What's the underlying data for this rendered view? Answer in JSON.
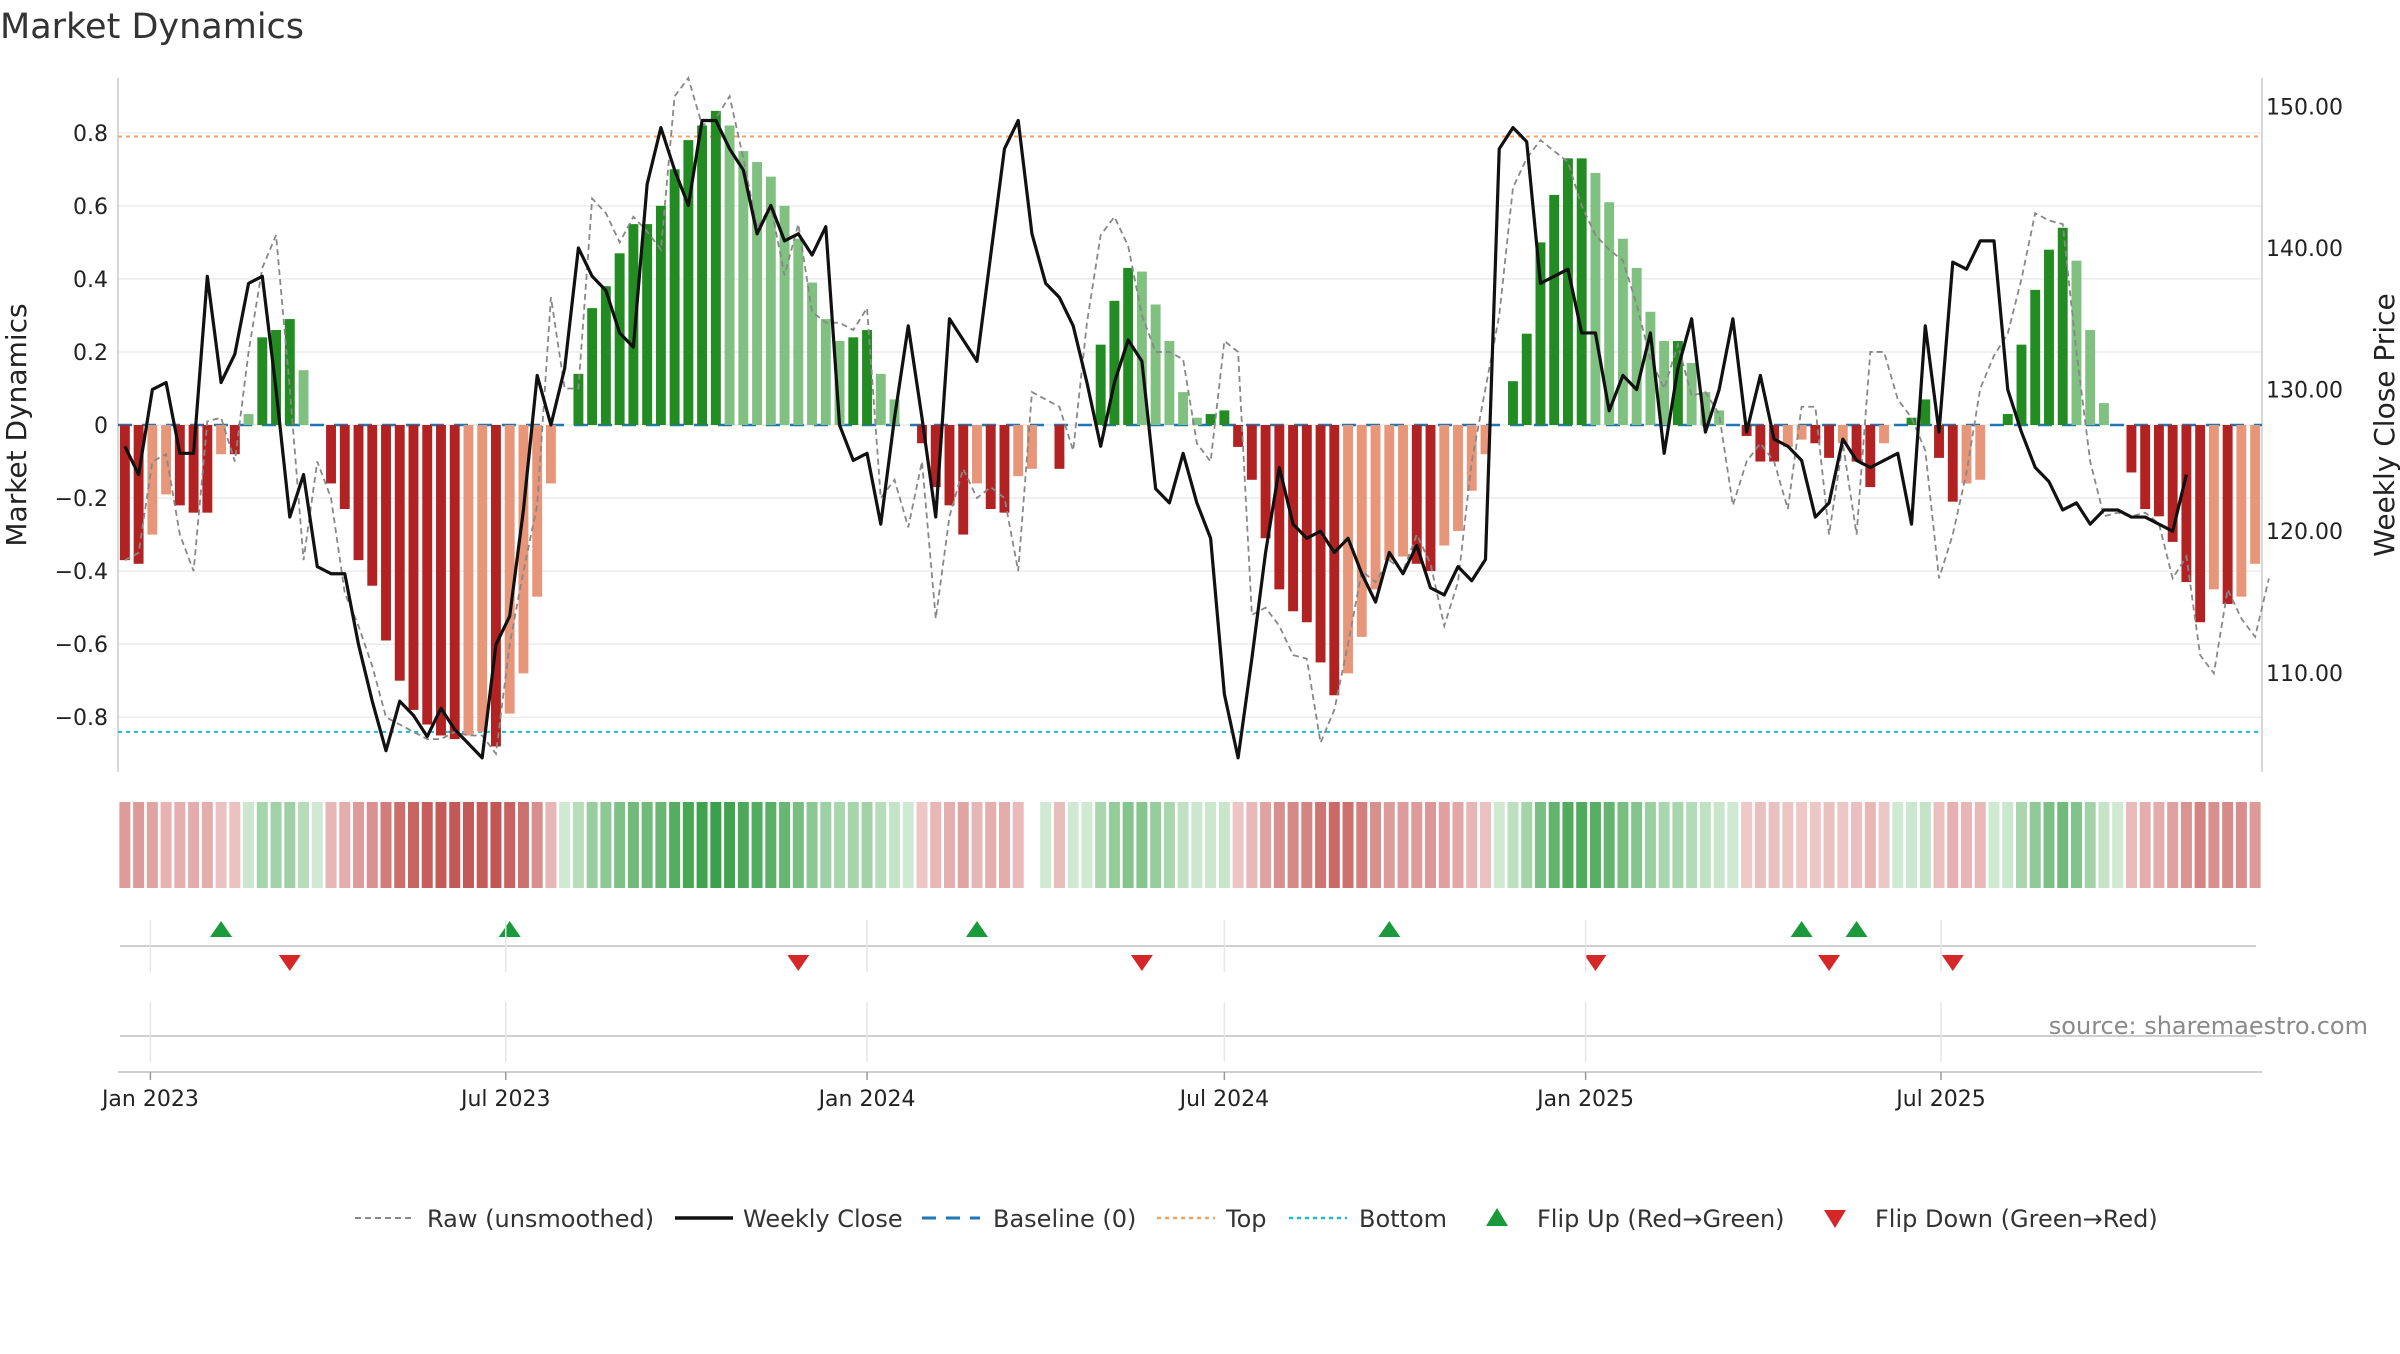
{
  "chart_data": {
    "type": "bar",
    "title": "Market Dynamics",
    "ylabel_left": "Market Dynamics",
    "ylabel_right": "Weekly Close Price",
    "ylim_left": [
      -0.95,
      0.95
    ],
    "ylim_right": [
      103,
      152
    ],
    "yticks_left": [
      "0.8",
      "0.6",
      "0.4",
      "0.2",
      "0",
      "−0.2",
      "−0.4",
      "−0.6",
      "−0.8"
    ],
    "yticks_right": [
      "150.00",
      "140.00",
      "130.00",
      "120.00",
      "110.00"
    ],
    "x_ticks": [
      "Jan 2023",
      "Jul 2023",
      "Jan 2024",
      "Jul 2024",
      "Jan 2025",
      "Jul 2025"
    ],
    "x_start_date": "2022-12-19",
    "grid": true,
    "legend_position": "bottom",
    "source": "source: sharemaestro.com",
    "levels": {
      "top": 0.79,
      "bottom": -0.84,
      "baseline": 0
    },
    "colors": {
      "strong_green": "#228b22",
      "light_green": "#80c080",
      "strong_red": "#b22222",
      "light_red": "#e8967a",
      "raw_line": "#888888",
      "close_line": "#111111",
      "baseline": "#1f77b4",
      "top": "#f4a261",
      "bottom": "#17becf",
      "flip_up": "#1a9a3a",
      "flip_down": "#d62728"
    },
    "series": [
      {
        "name": "Market Dynamics",
        "values": [
          -0.37,
          -0.38,
          -0.3,
          -0.19,
          -0.22,
          -0.24,
          -0.24,
          -0.08,
          -0.08,
          0.03,
          0.24,
          0.26,
          0.29,
          0.15,
          0,
          -0.16,
          -0.23,
          -0.37,
          -0.44,
          -0.59,
          -0.7,
          -0.78,
          -0.82,
          -0.85,
          -0.86,
          -0.85,
          -0.84,
          -0.88,
          -0.79,
          -0.68,
          -0.47,
          -0.16,
          0,
          0.14,
          0.32,
          0.38,
          0.47,
          0.55,
          0.55,
          0.6,
          0.7,
          0.78,
          0.82,
          0.86,
          0.82,
          0.75,
          0.72,
          0.68,
          0.6,
          0.51,
          0.39,
          0.29,
          0.23,
          0.24,
          0.26,
          0.14,
          0.07,
          0,
          -0.05,
          -0.17,
          -0.22,
          -0.3,
          -0.16,
          -0.23,
          -0.24,
          -0.14,
          -0.12,
          0,
          -0.12,
          0,
          0,
          0.22,
          0.34,
          0.43,
          0.42,
          0.33,
          0.23,
          0.09,
          0.02,
          0.03,
          0.04,
          -0.06,
          -0.15,
          -0.31,
          -0.45,
          -0.51,
          -0.54,
          -0.65,
          -0.74,
          -0.68,
          -0.58,
          -0.45,
          -0.37,
          -0.36,
          -0.38,
          -0.4,
          -0.33,
          -0.29,
          -0.18,
          -0.08,
          0,
          0.12,
          0.25,
          0.5,
          0.63,
          0.73,
          0.73,
          0.69,
          0.61,
          0.51,
          0.43,
          0.31,
          0.23,
          0.23,
          0.17,
          0.09,
          0.04,
          0,
          -0.03,
          -0.1,
          -0.1,
          -0.06,
          -0.04,
          -0.05,
          -0.09,
          -0.05,
          -0.1,
          -0.17,
          -0.05,
          0,
          0.02,
          0.07,
          -0.09,
          -0.21,
          -0.16,
          -0.15,
          0,
          0.03,
          0.22,
          0.37,
          0.48,
          0.54,
          0.45,
          0.26,
          0.06,
          0,
          -0.13,
          -0.23,
          -0.25,
          -0.32,
          -0.43,
          -0.54,
          -0.45,
          -0.49,
          -0.47,
          -0.38
        ]
      },
      {
        "name": "Raw (unsmoothed)",
        "values": [
          -0.37,
          -0.35,
          -0.1,
          -0.08,
          -0.3,
          -0.4,
          0.01,
          0.02,
          -0.1,
          0.2,
          0.43,
          0.52,
          0.1,
          -0.37,
          -0.1,
          -0.2,
          -0.46,
          -0.55,
          -0.66,
          -0.8,
          -0.82,
          -0.84,
          -0.86,
          -0.86,
          -0.84,
          -0.85,
          -0.85,
          -0.9,
          -0.6,
          -0.4,
          -0.22,
          0.35,
          0.1,
          0.1,
          0.62,
          0.58,
          0.5,
          0.57,
          0.53,
          0.48,
          0.9,
          0.95,
          0.82,
          0.84,
          0.9,
          0.73,
          0.54,
          0.6,
          0.41,
          0.55,
          0.31,
          0.28,
          0.28,
          0.26,
          0.32,
          -0.2,
          -0.15,
          -0.28,
          -0.1,
          -0.53,
          -0.25,
          -0.12,
          -0.2,
          -0.17,
          -0.2,
          -0.4,
          0.09,
          0.07,
          0.05,
          -0.07,
          0.28,
          0.52,
          0.57,
          0.49,
          0.3,
          0.2,
          0.2,
          0.18,
          -0.05,
          -0.1,
          0.23,
          0.2,
          -0.52,
          -0.5,
          -0.55,
          -0.63,
          -0.64,
          -0.87,
          -0.78,
          -0.6,
          -0.4,
          -0.43,
          -0.37,
          -0.4,
          -0.3,
          -0.38,
          -0.55,
          -0.43,
          -0.1,
          0.1,
          0.3,
          0.65,
          0.73,
          0.78,
          0.75,
          0.72,
          0.6,
          0.52,
          0.48,
          0.45,
          0.33,
          0.18,
          0.1,
          0.22,
          0.08,
          0.09,
          0.03,
          -0.22,
          -0.1,
          -0.05,
          -0.1,
          -0.23,
          0.05,
          0.05,
          -0.3,
          -0.05,
          -0.3,
          0.2,
          0.2,
          0.07,
          0.02,
          -0.07,
          -0.42,
          -0.3,
          -0.13,
          0.1,
          0.19,
          0.25,
          0.4,
          0.58,
          0.56,
          0.55,
          0.2,
          -0.1,
          -0.25,
          -0.24,
          -0.25,
          -0.24,
          -0.27,
          -0.42,
          -0.36,
          -0.63,
          -0.68,
          -0.45,
          -0.53,
          -0.58,
          -0.42
        ]
      },
      {
        "name": "Weekly Close",
        "values": [
          126,
          124,
          130,
          130.5,
          125.5,
          125.5,
          138,
          130.5,
          132.5,
          137.5,
          138,
          130,
          121,
          124,
          117.5,
          117,
          117,
          112,
          108,
          104.5,
          108,
          107,
          105.5,
          107.5,
          106,
          105,
          104,
          112,
          114,
          121.5,
          131,
          127.5,
          131.5,
          140,
          138,
          137,
          134,
          133,
          144.5,
          148.5,
          145.5,
          143,
          149,
          149,
          147,
          145.5,
          141,
          143,
          140.5,
          141,
          139.5,
          141.5,
          127.5,
          125,
          125.5,
          120.5,
          128,
          134.5,
          128,
          121,
          135,
          133.5,
          132,
          139.5,
          147,
          149,
          141,
          137.5,
          136.5,
          134.5,
          130.5,
          126,
          130.5,
          133.5,
          132,
          123,
          122,
          125.5,
          122,
          119.5,
          108.5,
          104,
          111,
          118.5,
          124.5,
          120.5,
          119.5,
          120,
          118.5,
          119.5,
          117,
          115,
          118.5,
          117,
          119,
          116,
          115.5,
          117.5,
          116.5,
          118,
          147,
          148.5,
          147.5,
          137.5,
          138,
          138.5,
          134,
          134,
          128.5,
          131,
          130,
          134,
          125.5,
          131.5,
          135,
          127,
          130,
          135,
          127,
          131,
          126.5,
          126,
          125,
          121,
          122,
          126.5,
          125,
          124.5,
          125,
          125.5,
          120.5,
          134.5,
          127,
          139,
          138.5,
          140.5,
          140.5,
          130,
          127,
          124.5,
          123.5,
          121.5,
          122,
          120.5,
          121.5,
          121.5,
          121,
          121,
          120.5,
          120,
          124
        ]
      }
    ],
    "flip_up_dates": [
      "2023-02-06",
      "2023-07-03",
      "2024-02-26",
      "2024-09-23",
      "2025-04-21",
      "2025-05-19"
    ],
    "flip_down_dates": [
      "2023-03-13",
      "2023-11-27",
      "2024-05-20",
      "2025-01-06",
      "2025-05-05",
      "2025-07-07"
    ],
    "legend": [
      {
        "label": "Raw (unsmoothed)",
        "style": "dashed-gray"
      },
      {
        "label": "Weekly Close",
        "style": "solid-black"
      },
      {
        "label": "Baseline (0)",
        "style": "dashed-blue"
      },
      {
        "label": "Top",
        "style": "dotted-orange"
      },
      {
        "label": "Bottom",
        "style": "dotted-cyan"
      },
      {
        "label": "Flip Up (Red→Green)",
        "style": "triangle-up-green"
      },
      {
        "label": "Flip Down (Green→Red)",
        "style": "triangle-down-red"
      }
    ]
  }
}
